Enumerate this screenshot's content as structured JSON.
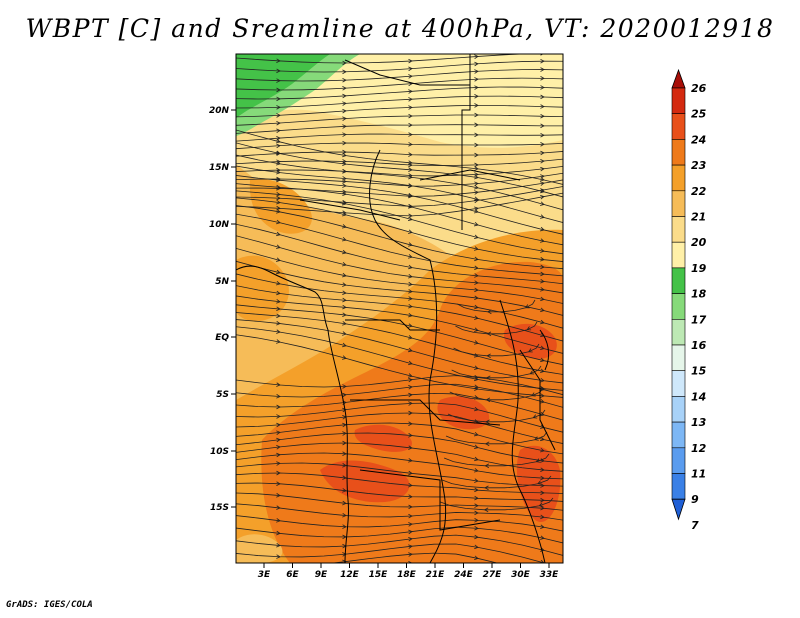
{
  "title": "WBPT [C] and Sreamline at 400hPa, VT: 2020012918",
  "footer": "GrADS: IGES/COLA",
  "map": {
    "lat_labels": [
      "20N",
      "15N",
      "10N",
      "5N",
      "EQ",
      "5S",
      "10S",
      "15S"
    ],
    "lon_labels": [
      "3E",
      "6E",
      "9E",
      "12E",
      "15E",
      "18E",
      "21E",
      "24E",
      "27E",
      "30E",
      "33E"
    ]
  },
  "colorbar": {
    "levels": [
      "7",
      "9",
      "11",
      "12",
      "13",
      "14",
      "15",
      "16",
      "17",
      "18",
      "19",
      "20",
      "21",
      "22",
      "23",
      "24",
      "25",
      "26"
    ],
    "colors": [
      "#1f5fd6",
      "#3a80e6",
      "#5a9cef",
      "#7db7f5",
      "#a8d2f8",
      "#cfe8fb",
      "#e6f6ea",
      "#bde9b4",
      "#86da7a",
      "#44c248",
      "#fff0a8",
      "#fbdc8a",
      "#f6bc58",
      "#f4a02a",
      "#ef7a1a",
      "#e8501a",
      "#d42a10",
      "#a80e08"
    ]
  },
  "colors": {
    "green_dark": "#44c248",
    "green_light": "#86da7a",
    "yellow_pale": "#fff0a8",
    "tan": "#fbdc8a",
    "orange_light": "#f6bc58",
    "orange": "#f4a02a",
    "orange_dark": "#ef7a1a",
    "red_orange": "#e8501a"
  }
}
